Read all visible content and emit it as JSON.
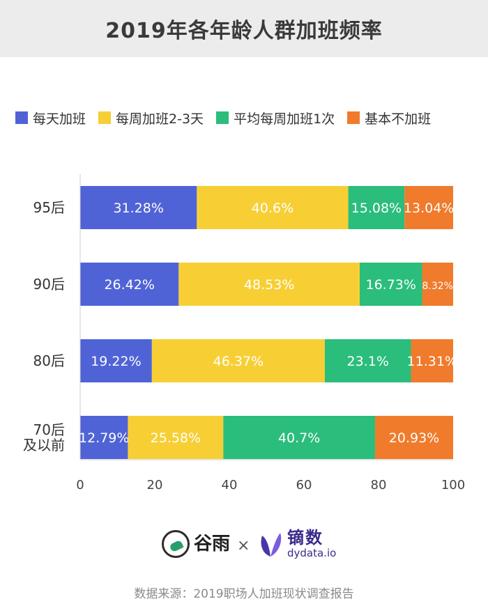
{
  "title": "2019年各年龄人群加班频率",
  "legend": [
    {
      "label": "每天加班",
      "color": "#5063d6"
    },
    {
      "label": "每周加班2-3天",
      "color": "#f7cf35"
    },
    {
      "label": "平均每周加班1次",
      "color": "#2bbd7c"
    },
    {
      "label": "基本不加班",
      "color": "#f07b2c"
    }
  ],
  "chart_data": {
    "type": "bar",
    "orientation": "horizontal",
    "stacked": true,
    "categories": [
      [
        "95后"
      ],
      [
        "90后"
      ],
      [
        "80后"
      ],
      [
        "70后",
        "及以前"
      ]
    ],
    "series": [
      {
        "name": "每天加班",
        "color": "#5063d6",
        "values": [
          31.28,
          26.42,
          19.22,
          12.79
        ],
        "labels": [
          "31.28%",
          "26.42%",
          "19.22%",
          "12.79%"
        ]
      },
      {
        "name": "每周加班2-3天",
        "color": "#f7cf35",
        "values": [
          40.6,
          48.53,
          46.37,
          25.58
        ],
        "labels": [
          "40.6%",
          "48.53%",
          "46.37%",
          "25.58%"
        ]
      },
      {
        "name": "平均每周加班1次",
        "color": "#2bbd7c",
        "values": [
          15.08,
          16.73,
          23.1,
          40.7
        ],
        "labels": [
          "15.08%",
          "16.73%",
          "23.1%",
          "40.7%"
        ]
      },
      {
        "name": "基本不加班",
        "color": "#f07b2c",
        "values": [
          13.04,
          8.32,
          11.31,
          20.93
        ],
        "labels": [
          "13.04%",
          "8.32%",
          "11.31%",
          "20.93%"
        ]
      }
    ],
    "xlim": [
      0,
      100
    ],
    "xticks": [
      "0",
      "20",
      "40",
      "60",
      "80",
      "100"
    ],
    "grid": false,
    "legend_position": "top"
  },
  "footer": {
    "logo_left": "谷雨",
    "times": "×",
    "logo_right_main": "镝数",
    "logo_right_sub": "dydata.io",
    "source": "数据来源：2019职场人加班现状调查报告"
  }
}
